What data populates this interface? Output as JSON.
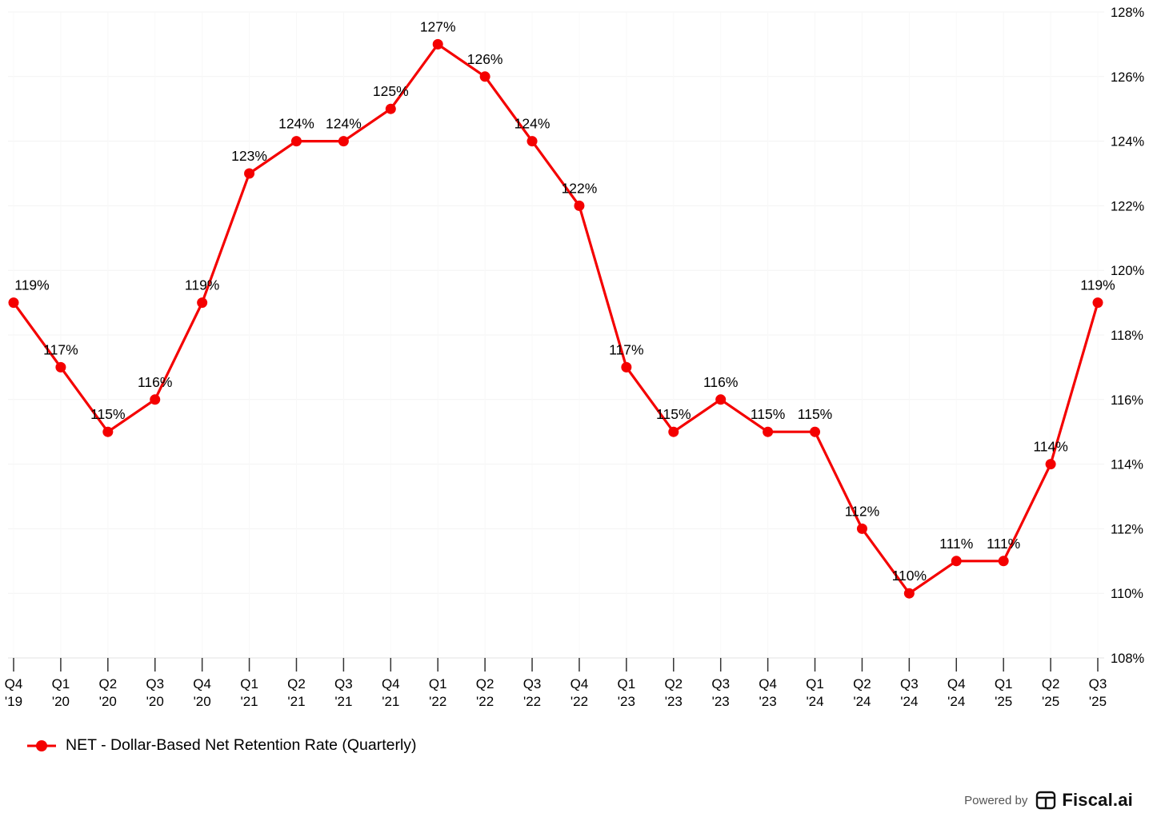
{
  "chart_data": {
    "type": "line",
    "categories": [
      {
        "q": "Q4",
        "y": "'19"
      },
      {
        "q": "Q1",
        "y": "'20"
      },
      {
        "q": "Q2",
        "y": "'20"
      },
      {
        "q": "Q3",
        "y": "'20"
      },
      {
        "q": "Q4",
        "y": "'20"
      },
      {
        "q": "Q1",
        "y": "'21"
      },
      {
        "q": "Q2",
        "y": "'21"
      },
      {
        "q": "Q3",
        "y": "'21"
      },
      {
        "q": "Q4",
        "y": "'21"
      },
      {
        "q": "Q1",
        "y": "'22"
      },
      {
        "q": "Q2",
        "y": "'22"
      },
      {
        "q": "Q3",
        "y": "'22"
      },
      {
        "q": "Q4",
        "y": "'22"
      },
      {
        "q": "Q1",
        "y": "'23"
      },
      {
        "q": "Q2",
        "y": "'23"
      },
      {
        "q": "Q3",
        "y": "'23"
      },
      {
        "q": "Q4",
        "y": "'23"
      },
      {
        "q": "Q1",
        "y": "'24"
      },
      {
        "q": "Q2",
        "y": "'24"
      },
      {
        "q": "Q3",
        "y": "'24"
      },
      {
        "q": "Q4",
        "y": "'24"
      },
      {
        "q": "Q1",
        "y": "'25"
      },
      {
        "q": "Q2",
        "y": "'25"
      },
      {
        "q": "Q3",
        "y": "'25"
      }
    ],
    "series": [
      {
        "name": "NET - Dollar-Based Net Retention Rate (Quarterly)",
        "values": [
          119,
          117,
          115,
          116,
          119,
          123,
          124,
          124,
          125,
          127,
          126,
          124,
          122,
          117,
          115,
          116,
          115,
          115,
          112,
          110,
          111,
          111,
          114,
          119
        ]
      }
    ],
    "ylim": [
      108,
      128
    ],
    "ytick_step": 2,
    "y_suffix": "%",
    "label_suffix": "%",
    "line_color": "#f40000",
    "grid": true,
    "legend_position": "bottom-left",
    "title": "",
    "xlabel": "",
    "ylabel": ""
  },
  "legend": {
    "label": "NET - Dollar-Based Net Retention Rate (Quarterly)"
  },
  "footer": {
    "powered_by": "Powered by",
    "brand": "Fiscal.ai"
  }
}
